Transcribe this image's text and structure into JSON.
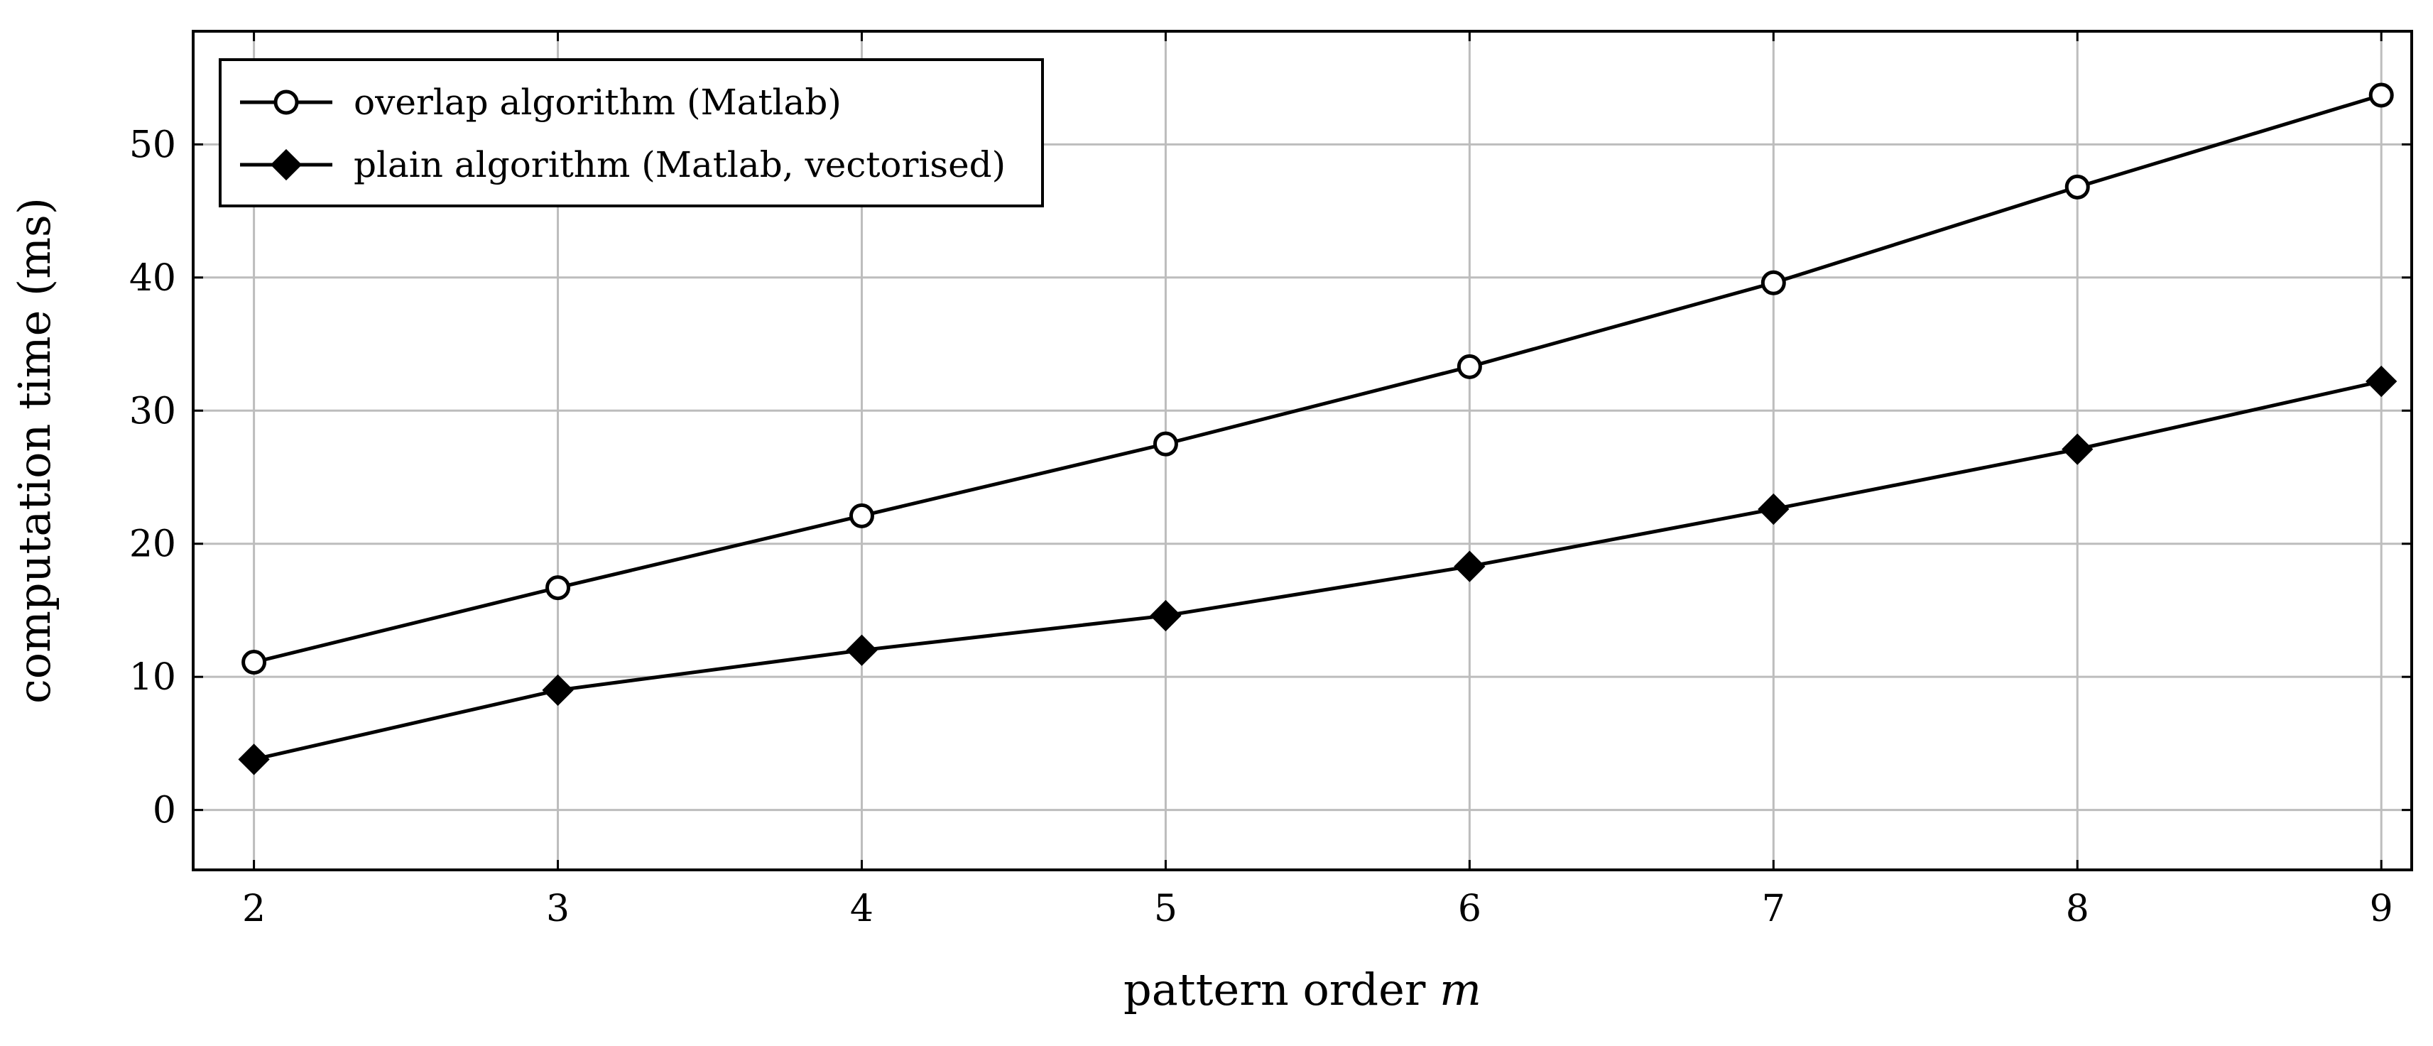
{
  "chart_data": {
    "type": "line",
    "xlabel": "pattern order",
    "xlabel_var": "m",
    "ylabel": "computation time (ms)",
    "xlim": [
      1.8,
      9.1
    ],
    "ylim": [
      -4.5,
      58.5
    ],
    "xticks": [
      2,
      3,
      4,
      5,
      6,
      7,
      8,
      9
    ],
    "yticks": [
      0,
      10,
      20,
      30,
      40,
      50
    ],
    "grid": true,
    "legend_position": "top-left",
    "x": [
      2,
      3,
      4,
      5,
      6,
      7,
      8,
      9
    ],
    "series": [
      {
        "name": "overlap algorithm (Matlab)",
        "marker": "open-circle",
        "color": "#000000",
        "values": [
          11.1,
          16.7,
          22.1,
          27.5,
          33.3,
          39.6,
          46.8,
          53.7
        ]
      },
      {
        "name": "plain algorithm (Matlab, vectorised)",
        "marker": "filled-diamond",
        "color": "#000000",
        "values": [
          3.8,
          9.0,
          12.0,
          14.6,
          18.3,
          22.6,
          27.1,
          32.2
        ]
      }
    ]
  }
}
